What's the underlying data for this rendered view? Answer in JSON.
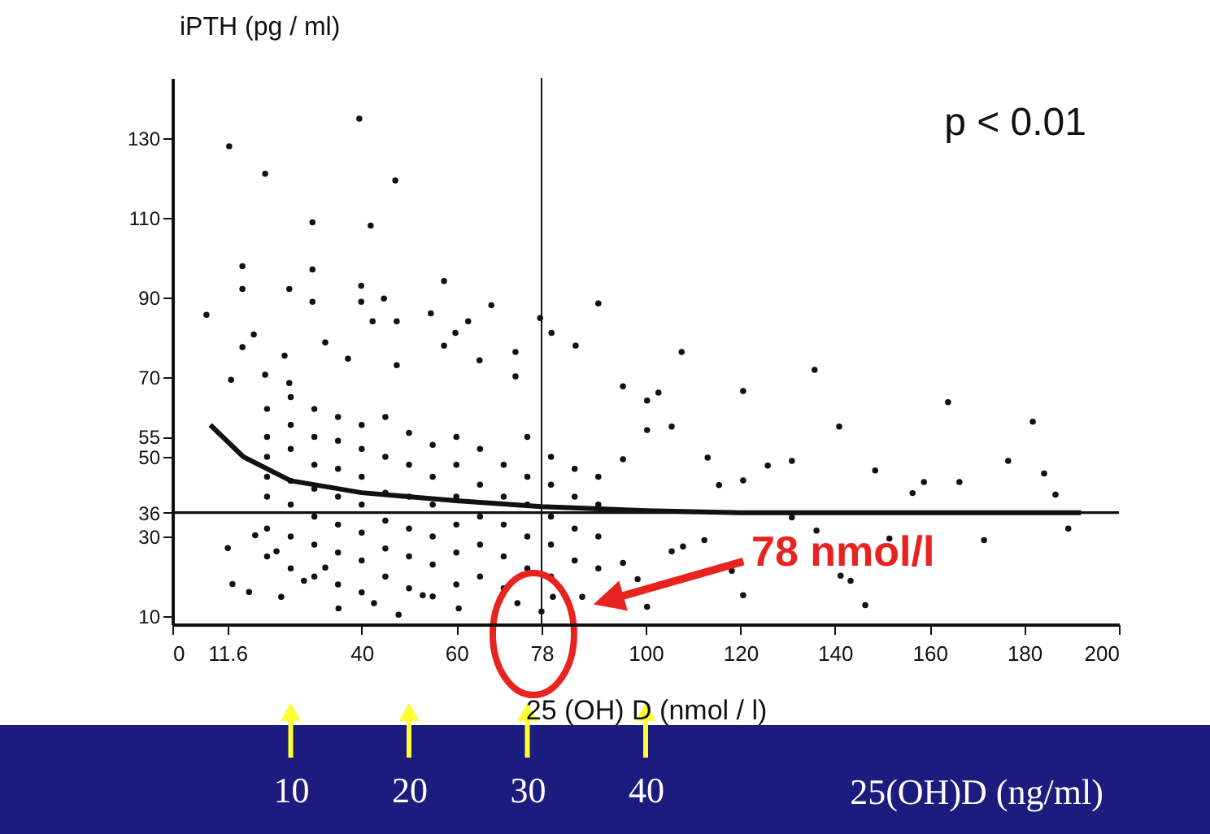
{
  "chart_data": {
    "type": "scatter",
    "ylabel": "iPTH (pg / ml)",
    "xlabel": "25 (OH) D (nmol / l)",
    "x2label": "25(OH)D (ng/ml)",
    "xlim": [
      0,
      200
    ],
    "xticks": [
      0,
      11.6,
      40,
      60,
      78,
      100,
      120,
      140,
      160,
      180,
      200
    ],
    "ylim": [
      8,
      145
    ],
    "yticks": [
      10,
      30,
      36,
      50,
      55,
      70,
      90,
      110,
      130
    ],
    "x2lim": [
      0,
      80
    ],
    "x2ticks": [
      10,
      20,
      30,
      40
    ],
    "grid": false,
    "series": [
      {
        "color": "#111111",
        "marker": "circle",
        "x": [
          39.5,
          12.0,
          19.6,
          47.1,
          29.6,
          41.9,
          14.8,
          29.6,
          14.8,
          39.9,
          57.4,
          7.2,
          24.7,
          29.6,
          39.9,
          44.7,
          67.4,
          90.0,
          54.6,
          77.7,
          17.2,
          42.3,
          47.4,
          59.8,
          62.5,
          80.1,
          85.2,
          14.8,
          32.3,
          57.4,
          72.5,
          23.7,
          37.1,
          47.4,
          64.9,
          12.4,
          19.6,
          24.7,
          72.5,
          95.2,
          100.3,
          107.6,
          135.7,
          120.6,
          163.9,
          102.7,
          181.8,
          140.9,
          130.9,
          148.5,
          176.6,
          184.2,
          166.3,
          158.8,
          156.4,
          186.6,
          189.3,
          171.5,
          151.5,
          146.4,
          143.3,
          141.2,
          120.6,
          118.2,
          100.3,
          136.1,
          130.9,
          125.8,
          120.6,
          115.5,
          113.1,
          105.5,
          100.3,
          95.2,
          105.5,
          107.9,
          112.4,
          95.2,
          98.3,
          47.8,
          35.1,
          23.0,
          16.2,
          12.7,
          11.7,
          27.8,
          32.3,
          42.6,
          52.9,
          60.5,
          72.9,
          78.0,
          80.4,
          86.6,
          17.5,
          22.0,
          20,
          20,
          20,
          20,
          20,
          20,
          20,
          25,
          25,
          25,
          25,
          25,
          25,
          25,
          30,
          30,
          30,
          30,
          30,
          30,
          30,
          35,
          35,
          35,
          35,
          35,
          35,
          35,
          40,
          40,
          40,
          40,
          40,
          40,
          40,
          45,
          45,
          45,
          45,
          45,
          45,
          50,
          50,
          50,
          50,
          50,
          50,
          55,
          55,
          55,
          55,
          55,
          55,
          60,
          60,
          60,
          60,
          60,
          60,
          65,
          65,
          65,
          65,
          65,
          70,
          70,
          70,
          70,
          70,
          75,
          75,
          75,
          75,
          75,
          80,
          80,
          80,
          80,
          80,
          85,
          85,
          85,
          85,
          90,
          90,
          90,
          90
        ],
        "values": [
          134.8,
          127.9,
          121,
          119.3,
          108.8,
          108,
          97.8,
          97,
          92.1,
          92.9,
          94.1,
          85.6,
          92.1,
          88.9,
          88.9,
          89.7,
          88,
          88.5,
          86,
          84.8,
          80.7,
          84,
          84,
          81.1,
          84,
          81.1,
          77.9,
          77.5,
          78.7,
          77.9,
          76.3,
          75.4,
          74.6,
          73,
          74.2,
          69.3,
          70.6,
          68.5,
          70.2,
          67.7,
          64.1,
          76.3,
          71.8,
          66.5,
          63.7,
          66.1,
          58.8,
          57.6,
          49,
          46.6,
          49,
          45.8,
          43.7,
          43.7,
          40.9,
          40.5,
          32,
          29.1,
          29.5,
          12.8,
          18.9,
          20.2,
          15.3,
          21.4,
          12.4,
          31.5,
          34.8,
          47.8,
          44.1,
          42.9,
          49.8,
          57.6,
          56.7,
          49.4,
          26.3,
          27.5,
          29.1,
          23.4,
          19.3,
          10.4,
          12,
          14.9,
          16.1,
          18.1,
          27.1,
          18.9,
          22.2,
          13.3,
          15.3,
          12,
          13.3,
          11.2,
          14.9,
          14.9,
          30.3,
          26.3,
          25,
          32,
          40,
          45,
          50,
          55,
          62,
          22,
          30,
          38,
          44,
          52,
          58,
          65,
          20,
          28,
          35,
          42,
          48,
          55,
          62,
          18,
          26,
          33,
          40,
          47,
          54,
          60,
          16,
          24,
          31,
          38,
          45,
          52,
          58,
          20,
          27,
          34,
          41,
          50,
          60,
          17,
          25,
          32,
          40,
          48,
          56,
          15,
          23,
          30,
          38,
          45,
          53,
          18,
          26,
          33,
          40,
          48,
          55,
          20,
          28,
          35,
          43,
          52,
          17,
          25,
          33,
          40,
          48,
          22,
          30,
          38,
          45,
          55,
          20,
          28,
          35,
          43,
          50,
          24,
          32,
          40,
          47,
          22,
          30,
          38,
          45
        ]
      },
      {
        "type": "line",
        "color": "#111111",
        "line_style": "solid",
        "x": [
          8,
          15,
          25,
          40,
          60,
          78,
          100,
          120,
          192
        ],
        "values": [
          58,
          50,
          44,
          41,
          39,
          37.5,
          36.5,
          36,
          36
        ]
      }
    ],
    "ref_lines": [
      {
        "axis": "y",
        "value": 36,
        "color": "#111111",
        "line_style": "solid"
      },
      {
        "axis": "x",
        "value": 78,
        "color": "#111111",
        "line_style": "solid"
      }
    ],
    "annotations": [
      "p < 0.01",
      "78 nmol/l"
    ]
  }
}
